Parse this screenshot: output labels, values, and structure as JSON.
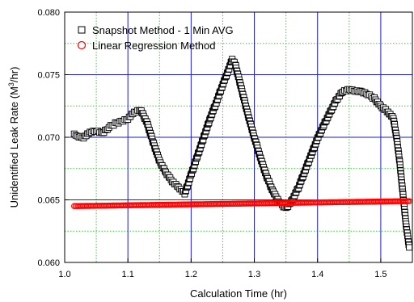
{
  "chart_data": {
    "type": "scatter",
    "xlabel": "Calculation Time (hr)",
    "ylabel": "Unidentified Leak Rate (M³/hr)",
    "xlim": [
      1.0,
      1.55
    ],
    "ylim": [
      0.06,
      0.08
    ],
    "x_ticks": [
      "1.0",
      "1.1",
      "1.2",
      "1.3",
      "1.4",
      "1.5"
    ],
    "y_ticks": [
      "0.060",
      "0.065",
      "0.070",
      "0.075",
      "0.080"
    ],
    "grid": {
      "major": true,
      "major_color": "#1a1ad0",
      "minor": true,
      "minor_color": "#2bd62b",
      "minor_style": "dotted"
    },
    "legend_position": "top-left",
    "series": [
      {
        "name": "Snapshot Method - 1 Min AVG",
        "marker": "square-open",
        "color": "#000000",
        "x": [
          1.015,
          1.02,
          1.03,
          1.04,
          1.05,
          1.06,
          1.07,
          1.08,
          1.09,
          1.1,
          1.11,
          1.12,
          1.13,
          1.14,
          1.15,
          1.16,
          1.17,
          1.18,
          1.19,
          1.2,
          1.21,
          1.22,
          1.23,
          1.24,
          1.25,
          1.26,
          1.265,
          1.27,
          1.28,
          1.29,
          1.3,
          1.31,
          1.32,
          1.33,
          1.34,
          1.35,
          1.36,
          1.37,
          1.38,
          1.39,
          1.4,
          1.41,
          1.42,
          1.43,
          1.44,
          1.45,
          1.46,
          1.47,
          1.48,
          1.49,
          1.5,
          1.51,
          1.52,
          1.525,
          1.53,
          1.535,
          1.54,
          1.545
        ],
        "y": [
          0.0702,
          0.0701,
          0.07,
          0.0704,
          0.0705,
          0.0703,
          0.0708,
          0.0711,
          0.0713,
          0.0715,
          0.072,
          0.0722,
          0.0712,
          0.0696,
          0.0681,
          0.0672,
          0.0665,
          0.066,
          0.0655,
          0.067,
          0.0685,
          0.07,
          0.0715,
          0.0728,
          0.0742,
          0.0755,
          0.0762,
          0.0758,
          0.0738,
          0.0718,
          0.07,
          0.0683,
          0.0668,
          0.0656,
          0.0648,
          0.0643,
          0.065,
          0.066,
          0.0673,
          0.0686,
          0.0699,
          0.071,
          0.072,
          0.073,
          0.0737,
          0.0738,
          0.0737,
          0.0736,
          0.0734,
          0.0731,
          0.0725,
          0.0721,
          0.0715,
          0.07,
          0.068,
          0.0655,
          0.063,
          0.0612
        ]
      },
      {
        "name": "Linear Regression Method",
        "marker": "circle-open",
        "color": "#ff0000",
        "x": [
          1.015,
          1.545
        ],
        "y": [
          0.0645,
          0.0649
        ]
      }
    ]
  }
}
